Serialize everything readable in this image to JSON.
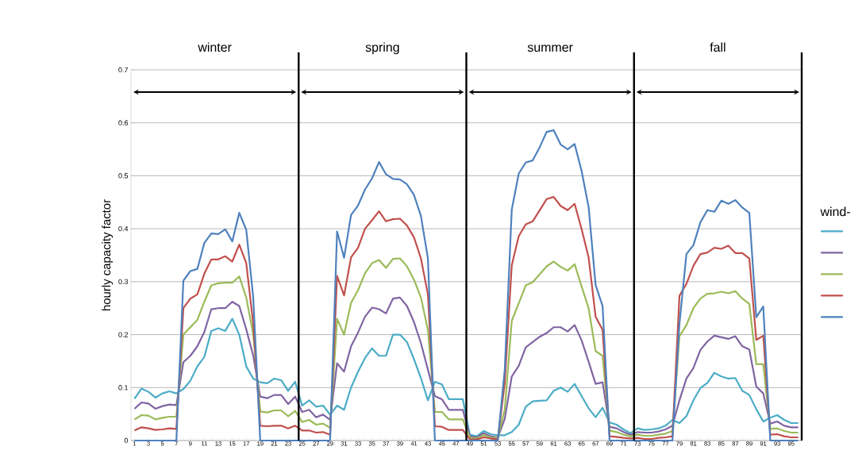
{
  "chart_data": {
    "type": "line",
    "ylabel": "hourly capacity factor",
    "legend_title": "wind-",
    "grid": "y",
    "x": [
      1,
      2,
      3,
      4,
      5,
      6,
      7,
      8,
      9,
      10,
      11,
      12,
      13,
      14,
      15,
      16,
      17,
      18,
      19,
      20,
      21,
      22,
      23,
      24,
      25,
      26,
      27,
      28,
      29,
      30,
      31,
      32,
      33,
      34,
      35,
      36,
      37,
      38,
      39,
      40,
      41,
      42,
      43,
      44,
      45,
      46,
      47,
      48,
      49,
      50,
      51,
      52,
      53,
      54,
      55,
      56,
      57,
      58,
      59,
      60,
      61,
      62,
      63,
      64,
      65,
      66,
      67,
      68,
      69,
      70,
      71,
      72,
      73,
      74,
      75,
      76,
      77,
      78,
      79,
      80,
      81,
      82,
      83,
      84,
      85,
      86,
      87,
      88,
      89,
      90,
      91,
      92,
      93,
      94,
      95,
      96
    ],
    "xlim": [
      0.5,
      96.5
    ],
    "xticks": [
      1,
      3,
      5,
      7,
      9,
      11,
      13,
      15,
      17,
      19,
      21,
      23,
      25,
      27,
      29,
      31,
      33,
      35,
      37,
      39,
      41,
      43,
      45,
      47,
      49,
      51,
      53,
      55,
      57,
      59,
      61,
      63,
      65,
      67,
      69,
      71,
      73,
      75,
      77,
      79,
      81,
      83,
      85,
      87,
      89,
      91,
      93,
      95
    ],
    "ylim": [
      0,
      0.7
    ],
    "yticks": [
      0,
      0.1,
      0.2,
      0.3,
      0.4,
      0.5,
      0.6,
      0.7
    ],
    "annotations": [
      "winter",
      "spring",
      "summer",
      "fall"
    ],
    "ref_lines": [
      {
        "axis": "x",
        "value": 24.5,
        "color": "#000000"
      },
      {
        "axis": "x",
        "value": 48.5,
        "color": "#000000"
      },
      {
        "axis": "x",
        "value": 72.5,
        "color": "#000000"
      },
      {
        "axis": "x",
        "value": 96.5,
        "color": "#000000"
      }
    ],
    "series": [
      {
        "color": "#4bacc6",
        "values": [
          0.079,
          0.098,
          0.092,
          0.081,
          0.089,
          0.093,
          0.089,
          0.097,
          0.113,
          0.14,
          0.158,
          0.207,
          0.212,
          0.207,
          0.23,
          0.2,
          0.14,
          0.117,
          0.11,
          0.108,
          0.117,
          0.114,
          0.094,
          0.111,
          0.066,
          0.076,
          0.064,
          0.066,
          0.049,
          0.066,
          0.058,
          0.1,
          0.13,
          0.156,
          0.174,
          0.16,
          0.16,
          0.2,
          0.2,
          0.186,
          0.154,
          0.118,
          0.076,
          0.111,
          0.106,
          0.078,
          0.078,
          0.078,
          0.011,
          0.008,
          0.018,
          0.012,
          0.01,
          0.01,
          0.016,
          0.03,
          0.064,
          0.074,
          0.075,
          0.076,
          0.094,
          0.1,
          0.092,
          0.107,
          0.084,
          0.061,
          0.044,
          0.062,
          0.034,
          0.03,
          0.021,
          0.014,
          0.023,
          0.02,
          0.021,
          0.023,
          0.028,
          0.039,
          0.033,
          0.046,
          0.076,
          0.099,
          0.109,
          0.128,
          0.121,
          0.117,
          0.118,
          0.094,
          0.086,
          0.059,
          0.036,
          0.043,
          0.048,
          0.039,
          0.033,
          0.033
        ]
      },
      {
        "color": "#8064a2",
        "values": [
          0.06,
          0.072,
          0.07,
          0.06,
          0.065,
          0.068,
          0.067,
          0.148,
          0.16,
          0.178,
          0.205,
          0.248,
          0.25,
          0.25,
          0.262,
          0.254,
          0.21,
          0.16,
          0.083,
          0.08,
          0.086,
          0.086,
          0.069,
          0.083,
          0.054,
          0.058,
          0.044,
          0.049,
          0.039,
          0.146,
          0.13,
          0.178,
          0.204,
          0.234,
          0.251,
          0.248,
          0.24,
          0.268,
          0.27,
          0.254,
          0.224,
          0.184,
          0.134,
          0.084,
          0.078,
          0.058,
          0.058,
          0.058,
          0.008,
          0.006,
          0.014,
          0.008,
          0.006,
          0.041,
          0.121,
          0.141,
          0.176,
          0.186,
          0.196,
          0.203,
          0.214,
          0.214,
          0.206,
          0.218,
          0.189,
          0.149,
          0.107,
          0.11,
          0.026,
          0.023,
          0.016,
          0.011,
          0.016,
          0.015,
          0.015,
          0.017,
          0.021,
          0.028,
          0.076,
          0.117,
          0.137,
          0.171,
          0.187,
          0.198,
          0.195,
          0.192,
          0.197,
          0.178,
          0.172,
          0.102,
          0.089,
          0.032,
          0.036,
          0.028,
          0.025,
          0.025
        ]
      },
      {
        "color": "#9bbb59",
        "values": [
          0.04,
          0.048,
          0.047,
          0.04,
          0.043,
          0.045,
          0.045,
          0.2,
          0.214,
          0.228,
          0.262,
          0.293,
          0.297,
          0.298,
          0.298,
          0.31,
          0.27,
          0.2,
          0.055,
          0.053,
          0.057,
          0.057,
          0.046,
          0.056,
          0.035,
          0.039,
          0.03,
          0.032,
          0.024,
          0.23,
          0.2,
          0.26,
          0.284,
          0.316,
          0.335,
          0.341,
          0.326,
          0.343,
          0.344,
          0.329,
          0.304,
          0.27,
          0.209,
          0.054,
          0.054,
          0.04,
          0.04,
          0.04,
          0.005,
          0.004,
          0.01,
          0.006,
          0.005,
          0.059,
          0.226,
          0.259,
          0.293,
          0.299,
          0.314,
          0.329,
          0.338,
          0.328,
          0.321,
          0.333,
          0.291,
          0.25,
          0.169,
          0.16,
          0.019,
          0.016,
          0.011,
          0.008,
          0.011,
          0.009,
          0.009,
          0.011,
          0.013,
          0.018,
          0.197,
          0.218,
          0.25,
          0.268,
          0.277,
          0.278,
          0.281,
          0.278,
          0.282,
          0.268,
          0.258,
          0.144,
          0.144,
          0.022,
          0.023,
          0.018,
          0.015,
          0.015
        ]
      },
      {
        "color": "#c0504d",
        "values": [
          0.019,
          0.025,
          0.023,
          0.02,
          0.021,
          0.023,
          0.022,
          0.25,
          0.268,
          0.276,
          0.315,
          0.342,
          0.342,
          0.348,
          0.338,
          0.37,
          0.335,
          0.22,
          0.028,
          0.027,
          0.028,
          0.028,
          0.023,
          0.028,
          0.019,
          0.019,
          0.015,
          0.016,
          0.011,
          0.311,
          0.274,
          0.346,
          0.364,
          0.4,
          0.416,
          0.433,
          0.414,
          0.418,
          0.419,
          0.406,
          0.384,
          0.344,
          0.276,
          0.027,
          0.026,
          0.02,
          0.02,
          0.02,
          0.002,
          0.002,
          0.006,
          0.004,
          0.002,
          0.109,
          0.331,
          0.386,
          0.408,
          0.414,
          0.435,
          0.456,
          0.46,
          0.443,
          0.435,
          0.447,
          0.399,
          0.346,
          0.234,
          0.209,
          0.008,
          0.007,
          0.005,
          0.004,
          0.005,
          0.003,
          0.003,
          0.005,
          0.006,
          0.008,
          0.273,
          0.296,
          0.33,
          0.352,
          0.355,
          0.364,
          0.362,
          0.368,
          0.354,
          0.354,
          0.344,
          0.19,
          0.198,
          0.011,
          0.012,
          0.008,
          0.006,
          0.006
        ]
      },
      {
        "color": "#4f81bd",
        "values": [
          0,
          0,
          0,
          0,
          0,
          0,
          0,
          0.302,
          0.32,
          0.324,
          0.373,
          0.391,
          0.39,
          0.399,
          0.376,
          0.43,
          0.398,
          0.27,
          0,
          0,
          0,
          0,
          0,
          0,
          0,
          0,
          0,
          0,
          0,
          0.395,
          0.345,
          0.426,
          0.444,
          0.474,
          0.495,
          0.526,
          0.503,
          0.494,
          0.493,
          0.484,
          0.464,
          0.424,
          0.344,
          0,
          0,
          0,
          0,
          0,
          0,
          0,
          0,
          0,
          0,
          0.134,
          0.436,
          0.504,
          0.525,
          0.529,
          0.554,
          0.583,
          0.586,
          0.559,
          0.55,
          0.56,
          0.509,
          0.441,
          0.294,
          0.254,
          0,
          0,
          0,
          0,
          0,
          0,
          0,
          0,
          0,
          0,
          0.22,
          0.352,
          0.369,
          0.412,
          0.435,
          0.432,
          0.453,
          0.447,
          0.454,
          0.44,
          0.43,
          0.233,
          0.253,
          0,
          0,
          0,
          0,
          0
        ]
      }
    ]
  }
}
